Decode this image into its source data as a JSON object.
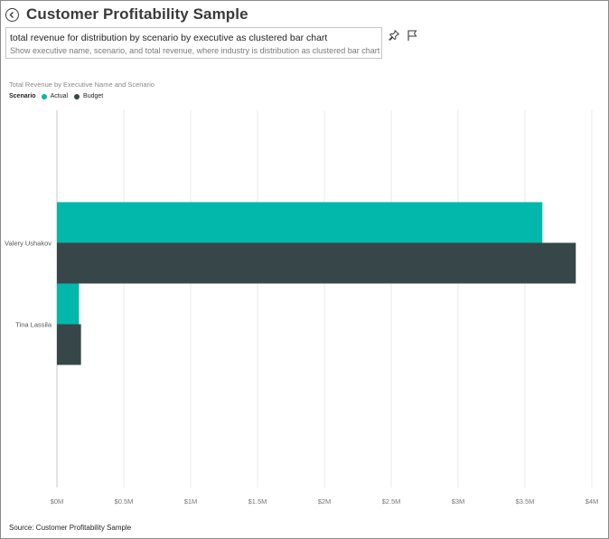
{
  "page": {
    "title": "Customer Profitability Sample"
  },
  "qa": {
    "query": "total revenue for distribution by scenario by executive as clustered bar chart",
    "restatement": "Show executive name, scenario, and total revenue, where industry is distribution as clustered bar chart"
  },
  "icons": {
    "back": "back-arrow-icon",
    "pin": "pin-icon",
    "flag": "flag-icon"
  },
  "source": "Source: Customer Profitability Sample",
  "chart_data": {
    "type": "bar",
    "orientation": "horizontal",
    "title": "Total Revenue by Executive Name and Scenario",
    "legend": {
      "title": "Scenario",
      "placement": "top-left"
    },
    "categories": [
      "Valery Ushakov",
      "Tina Lassila"
    ],
    "series": [
      {
        "name": "Actual",
        "color": "#01b8aa",
        "values": [
          3630000,
          165000
        ]
      },
      {
        "name": "Budget",
        "color": "#374649",
        "values": [
          3880000,
          180000
        ]
      }
    ],
    "xlim": [
      0,
      4000000
    ],
    "x_ticks": [
      0,
      500000,
      1000000,
      1500000,
      2000000,
      2500000,
      3000000,
      3500000,
      4000000
    ],
    "x_tick_labels": [
      "$0M",
      "$0.5M",
      "$1M",
      "$1.5M",
      "$2M",
      "$2.5M",
      "$3M",
      "$3.5M",
      "$4M"
    ],
    "xlabel": "",
    "ylabel": "",
    "grid": true
  }
}
